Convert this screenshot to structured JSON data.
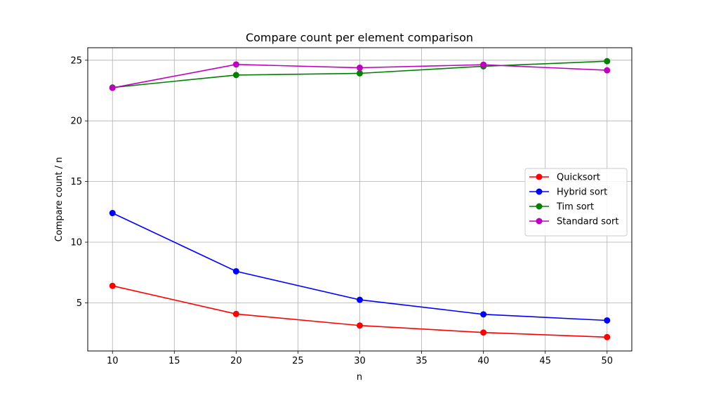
{
  "chart_data": {
    "type": "line",
    "title": "Compare count per element comparison",
    "xlabel": "n",
    "ylabel": "Compare count / n",
    "x": [
      10,
      20,
      30,
      40,
      50
    ],
    "xlim": [
      8.0,
      52.0
    ],
    "ylim": [
      1.03,
      26.03
    ],
    "xticks": [
      10,
      15,
      20,
      25,
      30,
      35,
      40,
      45,
      50
    ],
    "yticks": [
      5,
      10,
      15,
      20,
      25
    ],
    "grid": true,
    "legend_position": "center-right",
    "series": [
      {
        "name": "Quicksort",
        "color": "#ff0000",
        "marker": "circle",
        "values": [
          6.4,
          4.08,
          3.13,
          2.55,
          2.17
        ]
      },
      {
        "name": "Hybrid sort",
        "color": "#0000ff",
        "marker": "circle",
        "values": [
          12.4,
          7.6,
          5.25,
          4.05,
          3.55
        ]
      },
      {
        "name": "Tim sort",
        "color": "#008000",
        "marker": "circle",
        "values": [
          22.75,
          23.78,
          23.92,
          24.5,
          24.92
        ]
      },
      {
        "name": "Standard sort",
        "color": "#bf00bf",
        "marker": "circle",
        "values": [
          22.72,
          24.65,
          24.38,
          24.63,
          24.17
        ]
      }
    ]
  }
}
